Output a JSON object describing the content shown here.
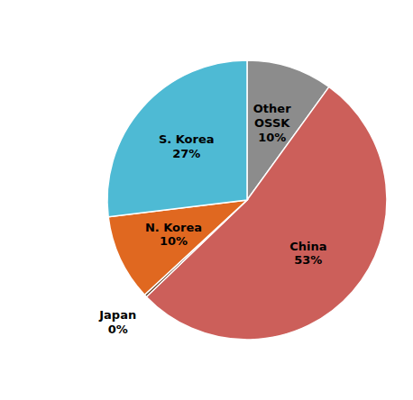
{
  "chart_data": {
    "type": "pie",
    "categories": [
      "Other\nOSSK",
      "China",
      "Japan",
      "N. Korea",
      "S. Korea"
    ],
    "values": [
      10,
      53,
      0.3,
      10,
      27
    ],
    "value_labels": [
      "10%",
      "53%",
      "0%",
      "10%",
      "27%"
    ],
    "colors": [
      "#8c8c8c",
      "#cc5f5a",
      "#5a3010",
      "#e06820",
      "#4ebad4"
    ],
    "data_labels": true
  }
}
